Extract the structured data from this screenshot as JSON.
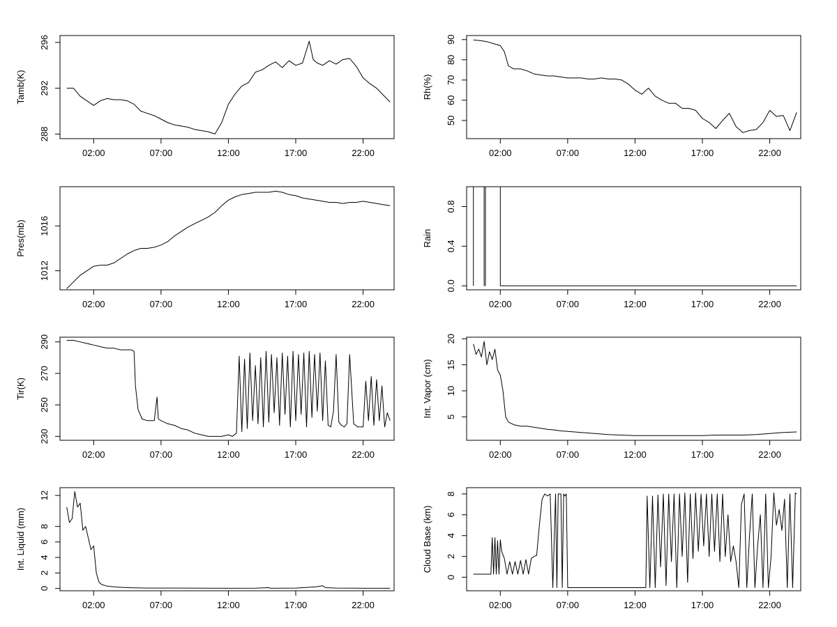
{
  "chart_data": [
    {
      "type": "line",
      "ylabel": "Tamb(K)",
      "x_ticks": [
        "02:00",
        "07:00",
        "12:00",
        "17:00",
        "22:00"
      ],
      "y_ticks": [
        288,
        292,
        296
      ],
      "xlim": [
        -0.5,
        24.3
      ],
      "ylim": [
        287.6,
        296.6
      ],
      "x": [
        0.0,
        0.5,
        1.0,
        1.5,
        2.0,
        2.5,
        3.0,
        3.5,
        4.0,
        4.5,
        5.0,
        5.5,
        6.0,
        6.5,
        7.0,
        7.5,
        8.0,
        8.5,
        9.0,
        9.5,
        10.0,
        10.5,
        11.0,
        11.5,
        12.0,
        12.5,
        13.0,
        13.5,
        14.0,
        14.5,
        15.0,
        15.5,
        16.0,
        16.5,
        17.0,
        17.5,
        18.0,
        18.3,
        18.6,
        19.0,
        19.5,
        20.0,
        20.5,
        21.0,
        21.5,
        22.0,
        22.5,
        23.0,
        23.5,
        24.0
      ],
      "values": [
        292.0,
        292.0,
        291.3,
        290.9,
        290.5,
        290.9,
        291.1,
        291.0,
        291.0,
        290.9,
        290.6,
        290.0,
        289.8,
        289.6,
        289.3,
        289.0,
        288.8,
        288.7,
        288.6,
        288.4,
        288.3,
        288.2,
        288.0,
        289.0,
        290.6,
        291.5,
        292.2,
        292.5,
        293.4,
        293.6,
        294.0,
        294.3,
        293.8,
        294.4,
        294.0,
        294.2,
        296.1,
        294.5,
        294.2,
        294.0,
        294.4,
        294.1,
        294.5,
        294.6,
        293.9,
        292.9,
        292.4,
        292.0,
        291.4,
        290.8
      ]
    },
    {
      "type": "line",
      "ylabel": "Rh(%)",
      "x_ticks": [
        "02:00",
        "07:00",
        "12:00",
        "17:00",
        "22:00"
      ],
      "y_ticks": [
        50,
        60,
        70,
        80,
        90
      ],
      "xlim": [
        -0.5,
        24.3
      ],
      "ylim": [
        41,
        92
      ],
      "x": [
        0.0,
        0.5,
        1.0,
        1.5,
        2.0,
        2.3,
        2.6,
        3.0,
        3.5,
        4.0,
        4.5,
        5.0,
        5.5,
        6.0,
        6.5,
        7.0,
        7.5,
        8.0,
        8.5,
        9.0,
        9.5,
        10.0,
        10.5,
        11.0,
        11.5,
        12.0,
        12.5,
        13.0,
        13.5,
        14.0,
        14.5,
        15.0,
        15.5,
        16.0,
        16.5,
        17.0,
        17.5,
        18.0,
        18.5,
        19.0,
        19.5,
        20.0,
        20.5,
        21.0,
        21.5,
        22.0,
        22.5,
        23.0,
        23.5,
        24.0
      ],
      "values": [
        89.8,
        89.5,
        89.0,
        88.0,
        87.0,
        84.0,
        77.0,
        75.5,
        75.5,
        74.5,
        73.0,
        72.5,
        72.0,
        72.0,
        71.5,
        71.0,
        71.0,
        71.0,
        70.5,
        70.5,
        71.0,
        70.5,
        70.5,
        70.0,
        68.0,
        65.0,
        63.0,
        66.0,
        62.0,
        60.0,
        58.5,
        58.5,
        56.0,
        56.0,
        55.0,
        51.0,
        49.0,
        46.0,
        50.0,
        53.5,
        47.0,
        44.0,
        45.0,
        45.5,
        49.0,
        55.0,
        52.0,
        52.5,
        45.0,
        54.0
      ]
    },
    {
      "type": "line",
      "ylabel": "Pres(mb)",
      "x_ticks": [
        "02:00",
        "07:00",
        "12:00",
        "17:00",
        "22:00"
      ],
      "y_ticks": [
        1012,
        1016
      ],
      "xlim": [
        -0.5,
        24.3
      ],
      "ylim": [
        1010.3,
        1019.5
      ],
      "x": [
        0.0,
        0.5,
        1.0,
        1.5,
        2.0,
        2.5,
        3.0,
        3.5,
        4.0,
        4.5,
        5.0,
        5.5,
        6.0,
        6.5,
        7.0,
        7.5,
        8.0,
        8.5,
        9.0,
        9.5,
        10.0,
        10.5,
        11.0,
        11.5,
        12.0,
        12.5,
        13.0,
        13.5,
        14.0,
        14.5,
        15.0,
        15.5,
        16.0,
        16.5,
        17.0,
        17.5,
        18.0,
        18.5,
        19.0,
        19.5,
        20.0,
        20.5,
        21.0,
        21.5,
        22.0,
        22.5,
        23.0,
        23.5,
        24.0
      ],
      "values": [
        1010.4,
        1011.0,
        1011.6,
        1012.0,
        1012.4,
        1012.5,
        1012.5,
        1012.7,
        1013.1,
        1013.5,
        1013.8,
        1014.0,
        1014.0,
        1014.1,
        1014.3,
        1014.6,
        1015.1,
        1015.5,
        1015.9,
        1016.2,
        1016.5,
        1016.8,
        1017.2,
        1017.8,
        1018.3,
        1018.6,
        1018.8,
        1018.9,
        1019.0,
        1019.0,
        1019.0,
        1019.1,
        1019.0,
        1018.8,
        1018.7,
        1018.5,
        1018.4,
        1018.3,
        1018.2,
        1018.1,
        1018.1,
        1018.0,
        1018.1,
        1018.1,
        1018.2,
        1018.1,
        1018.0,
        1017.9,
        1017.8
      ]
    },
    {
      "type": "line",
      "ylabel": "Rain",
      "x_ticks": [
        "02:00",
        "07:00",
        "12:00",
        "17:00",
        "22:00"
      ],
      "y_ticks": [
        "0.0",
        "0.4",
        "0.8"
      ],
      "y_tick_values": [
        0,
        0.4,
        0.8
      ],
      "xlim": [
        -0.5,
        24.3
      ],
      "ylim": [
        -0.04,
        1.0
      ],
      "x": [
        0.0,
        0.0,
        0.8,
        0.8,
        0.8,
        0.9,
        0.9,
        0.9,
        2.0,
        2.0,
        24.0
      ],
      "values": [
        0,
        1,
        1,
        0,
        1,
        1,
        0,
        1,
        1,
        0,
        0
      ]
    },
    {
      "type": "line",
      "ylabel": "Tir(K)",
      "x_ticks": [
        "02:00",
        "07:00",
        "12:00",
        "17:00",
        "22:00"
      ],
      "y_ticks": [
        230,
        250,
        270,
        290
      ],
      "xlim": [
        -0.5,
        24.3
      ],
      "ylim": [
        227.5,
        293
      ],
      "x": [
        0.0,
        0.5,
        1.0,
        1.5,
        2.0,
        2.5,
        3.0,
        3.5,
        4.0,
        4.5,
        4.8,
        5.0,
        5.1,
        5.3,
        5.6,
        6.0,
        6.5,
        6.7,
        6.8,
        7.0,
        7.5,
        8.0,
        8.5,
        9.0,
        9.5,
        10.0,
        10.5,
        11.0,
        11.5,
        12.0,
        12.3,
        12.6,
        12.8,
        13.0,
        13.2,
        13.4,
        13.6,
        13.8,
        14.0,
        14.2,
        14.4,
        14.6,
        14.8,
        15.0,
        15.2,
        15.4,
        15.6,
        15.8,
        16.0,
        16.2,
        16.4,
        16.6,
        16.8,
        17.0,
        17.2,
        17.4,
        17.6,
        17.8,
        18.0,
        18.2,
        18.4,
        18.6,
        18.8,
        19.0,
        19.2,
        19.4,
        19.6,
        19.8,
        20.0,
        20.2,
        20.4,
        20.6,
        20.8,
        21.0,
        21.3,
        21.6,
        22.0,
        22.2,
        22.4,
        22.6,
        22.8,
        23.0,
        23.2,
        23.4,
        23.6,
        23.8,
        24.0
      ],
      "values": [
        291,
        291,
        290,
        289,
        288,
        287,
        286,
        286,
        285,
        285,
        285,
        284,
        262,
        247,
        241,
        240,
        240,
        255,
        241,
        240,
        238,
        237,
        235,
        234,
        232,
        231,
        230,
        230,
        230,
        231,
        230,
        232,
        281,
        233,
        279,
        235,
        283,
        240,
        275,
        238,
        280,
        236,
        284,
        239,
        282,
        245,
        280,
        237,
        283,
        244,
        281,
        236,
        284,
        240,
        282,
        244,
        283,
        236,
        284,
        242,
        282,
        246,
        283,
        240,
        278,
        237,
        236,
        246,
        282,
        239,
        237,
        236,
        238,
        282,
        238,
        236,
        236,
        265,
        240,
        268,
        237,
        266,
        240,
        262,
        236,
        245,
        240
      ]
    },
    {
      "type": "line",
      "ylabel": "Int. Vapor (cm)",
      "x_ticks": [
        "02:00",
        "07:00",
        "12:00",
        "17:00",
        "22:00"
      ],
      "y_ticks": [
        5,
        10,
        15,
        20
      ],
      "xlim": [
        -0.5,
        24.3
      ],
      "ylim": [
        0.5,
        20.3
      ],
      "x": [
        0.0,
        0.2,
        0.4,
        0.6,
        0.8,
        1.0,
        1.2,
        1.4,
        1.6,
        1.8,
        2.0,
        2.2,
        2.4,
        2.6,
        3.0,
        3.5,
        4.0,
        4.5,
        5.0,
        5.5,
        6.0,
        6.5,
        7.0,
        7.5,
        8.0,
        9.0,
        10.0,
        11.0,
        12.0,
        13.0,
        14.0,
        15.0,
        16.0,
        17.0,
        18.0,
        19.0,
        20.0,
        21.0,
        22.0,
        23.0,
        24.0
      ],
      "values": [
        19.0,
        17.0,
        18.0,
        16.5,
        19.5,
        15.0,
        17.5,
        16.0,
        18.0,
        14.0,
        13.0,
        10.0,
        5.0,
        4.0,
        3.5,
        3.2,
        3.2,
        3.0,
        2.8,
        2.6,
        2.5,
        2.3,
        2.2,
        2.1,
        2.0,
        1.8,
        1.6,
        1.5,
        1.4,
        1.4,
        1.4,
        1.4,
        1.4,
        1.4,
        1.5,
        1.5,
        1.5,
        1.6,
        1.8,
        2.0,
        2.1
      ]
    },
    {
      "type": "line",
      "ylabel": "Int. Liquid (mm)",
      "x_ticks": [
        "02:00",
        "07:00",
        "12:00",
        "17:00",
        "22:00"
      ],
      "y_ticks": [
        0,
        2,
        4,
        6,
        8,
        12
      ],
      "xlim": [
        -0.5,
        24.3
      ],
      "ylim": [
        -0.3,
        13.0
      ],
      "x": [
        0.0,
        0.2,
        0.4,
        0.6,
        0.8,
        1.0,
        1.2,
        1.4,
        1.6,
        1.8,
        2.0,
        2.2,
        2.4,
        2.6,
        3.0,
        3.5,
        4.0,
        4.5,
        5.0,
        6.0,
        8.0,
        10.0,
        12.0,
        14.0,
        15.0,
        15.1,
        16.0,
        17.0,
        18.5,
        19.0,
        19.2,
        20.0,
        22.0,
        24.0
      ],
      "values": [
        10.5,
        8.5,
        9.0,
        12.5,
        10.5,
        11.0,
        7.5,
        8.0,
        6.5,
        5.0,
        5.5,
        2.0,
        0.8,
        0.5,
        0.3,
        0.2,
        0.15,
        0.1,
        0.08,
        0.05,
        0.05,
        0.03,
        0.02,
        0.03,
        0.1,
        0.02,
        0.03,
        0.05,
        0.2,
        0.35,
        0.1,
        0.05,
        0.02,
        0.02
      ]
    },
    {
      "type": "line",
      "ylabel": "Cloud Base (km)",
      "x_ticks": [
        "02:00",
        "07:00",
        "12:00",
        "17:00",
        "22:00"
      ],
      "y_ticks": [
        0,
        2,
        4,
        6,
        8
      ],
      "xlim": [
        -0.5,
        24.3
      ],
      "ylim": [
        -1.3,
        8.6
      ],
      "x": [
        0.0,
        0.5,
        1.0,
        1.3,
        1.4,
        1.5,
        1.6,
        1.7,
        1.8,
        1.9,
        2.0,
        2.1,
        2.3,
        2.5,
        2.7,
        2.9,
        3.1,
        3.3,
        3.5,
        3.7,
        3.9,
        4.1,
        4.3,
        4.5,
        4.7,
        4.9,
        5.1,
        5.3,
        5.5,
        5.7,
        5.9,
        6.1,
        6.2,
        6.3,
        6.4,
        6.5,
        6.6,
        6.7,
        6.8,
        6.9,
        7.0,
        12.8,
        12.9,
        13.1,
        13.3,
        13.5,
        13.7,
        13.9,
        14.1,
        14.3,
        14.5,
        14.7,
        14.9,
        15.1,
        15.3,
        15.5,
        15.7,
        15.9,
        16.1,
        16.3,
        16.5,
        16.7,
        16.9,
        17.1,
        17.3,
        17.5,
        17.7,
        17.9,
        18.1,
        18.3,
        18.5,
        18.7,
        18.9,
        19.1,
        19.3,
        19.5,
        19.7,
        19.9,
        20.1,
        20.3,
        20.5,
        20.7,
        20.9,
        21.1,
        21.3,
        21.5,
        21.7,
        21.9,
        22.1,
        22.3,
        22.5,
        22.7,
        22.9,
        23.1,
        23.3,
        23.5,
        23.7,
        23.9,
        24.0
      ],
      "values": [
        0.3,
        0.3,
        0.3,
        0.3,
        3.8,
        0.3,
        3.8,
        0.3,
        3.5,
        0.3,
        3.6,
        2.5,
        1.8,
        0.3,
        1.5,
        0.3,
        1.5,
        0.3,
        1.6,
        0.3,
        1.7,
        0.3,
        1.8,
        2.0,
        2.1,
        5.0,
        7.5,
        8.0,
        7.8,
        8.0,
        -1.0,
        8.0,
        -1.0,
        8.0,
        8.0,
        8.0,
        -1.0,
        8.0,
        7.8,
        8.0,
        -1.0,
        -1.0,
        7.8,
        -1.0,
        7.8,
        -1.0,
        7.9,
        1.0,
        8.0,
        -0.8,
        8.0,
        1.5,
        8.0,
        -1.0,
        8.0,
        2.0,
        8.1,
        -0.5,
        8.0,
        1.8,
        8.1,
        2.5,
        8.0,
        3.0,
        8.0,
        2.0,
        8.0,
        2.5,
        8.0,
        1.5,
        8.0,
        2.0,
        6.0,
        1.5,
        3.0,
        1.5,
        -1.0,
        7.0,
        8.0,
        -1.0,
        4.0,
        8.0,
        -1.0,
        3.0,
        6.0,
        -1.0,
        8.0,
        -1.0,
        2.0,
        8.1,
        5.0,
        6.5,
        4.5,
        7.5,
        -1.0,
        8.0,
        -1.0,
        8.1,
        8.0
      ]
    }
  ]
}
